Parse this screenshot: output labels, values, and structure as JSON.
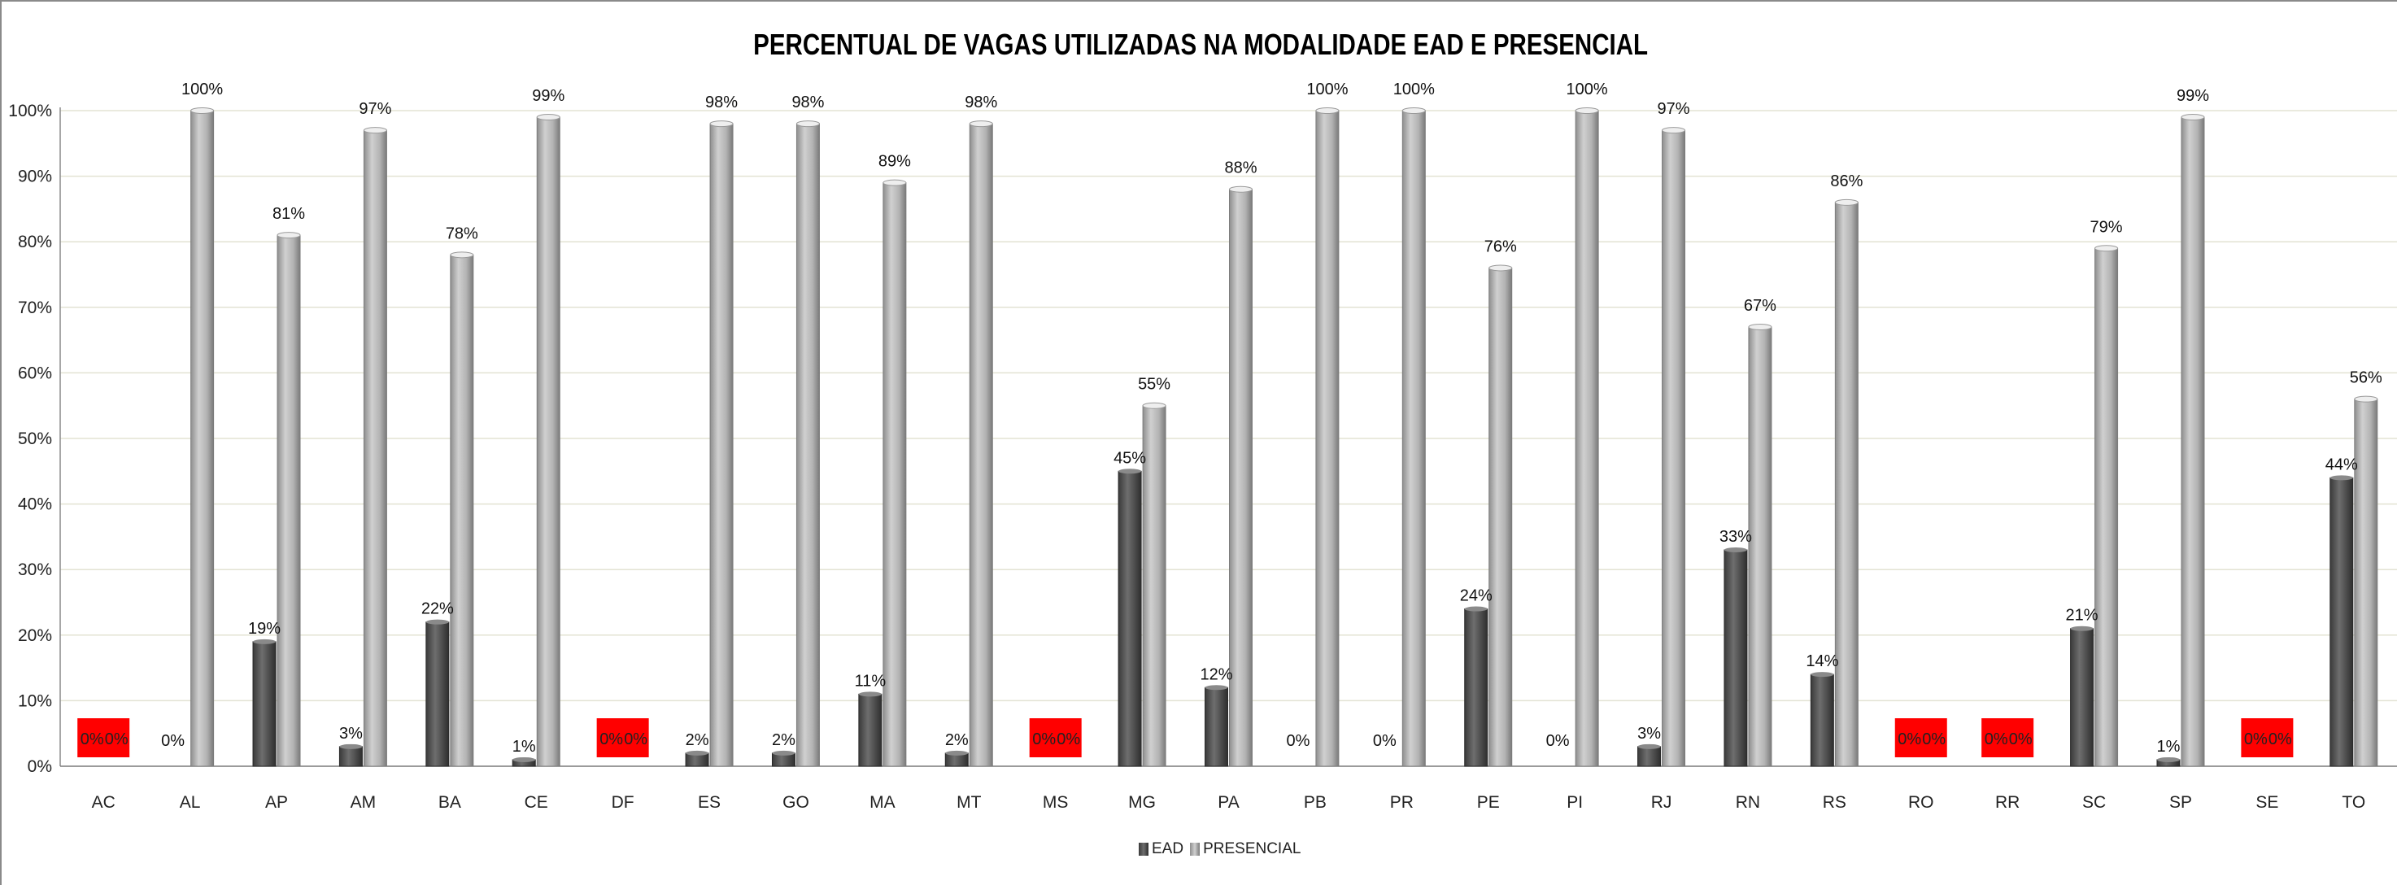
{
  "chart_data": {
    "type": "bar",
    "title": "PERCENTUAL DE VAGAS UTILIZADAS NA MODALIDADE EAD E PRESENCIAL",
    "xlabel": "",
    "ylabel": "",
    "ylim": [
      0,
      1
    ],
    "y_ticks": [
      "0%",
      "10%",
      "20%",
      "30%",
      "40%",
      "50%",
      "60%",
      "70%",
      "80%",
      "90%",
      "100%"
    ],
    "grid": true,
    "legend_position": "bottom",
    "categories": [
      "AC",
      "AL",
      "AP",
      "AM",
      "BA",
      "CE",
      "DF",
      "ES",
      "GO",
      "MA",
      "MT",
      "MS",
      "MG",
      "PA",
      "PB",
      "PR",
      "PE",
      "PI",
      "RJ",
      "RN",
      "RS",
      "RO",
      "RR",
      "SC",
      "SP",
      "SE",
      "TO"
    ],
    "series": [
      {
        "name": "EAD",
        "color": "#555555",
        "values": [
          0,
          0,
          0.19,
          0.03,
          0.22,
          0.01,
          0,
          0.02,
          0.02,
          0.11,
          0.02,
          0,
          0.45,
          0.12,
          0,
          0,
          0.24,
          0,
          0.03,
          0.33,
          0.14,
          0,
          0,
          0.21,
          0.01,
          0,
          0.44
        ],
        "labels": [
          "0%",
          "0%",
          "19%",
          "3%",
          "22%",
          "1%",
          "0%",
          "2%",
          "2%",
          "11%",
          "2%",
          "0%",
          "45%",
          "12%",
          "0%",
          "0%",
          "24%",
          "0%",
          "3%",
          "33%",
          "14%",
          "0%",
          "0%",
          "21%",
          "1%",
          "0%",
          "44%"
        ]
      },
      {
        "name": "PRESENCIAL",
        "color": "#b8b8b8",
        "values": [
          0,
          1.0,
          0.81,
          0.97,
          0.78,
          0.99,
          0,
          0.98,
          0.98,
          0.89,
          0.98,
          0,
          0.55,
          0.88,
          1.0,
          1.0,
          0.76,
          1.0,
          0.97,
          0.67,
          0.86,
          0,
          0,
          0.79,
          0.99,
          0,
          0.56
        ],
        "labels": [
          "0%",
          "100%",
          "81%",
          "97%",
          "78%",
          "99%",
          "0%",
          "98%",
          "98%",
          "89%",
          "98%",
          "0%",
          "55%",
          "88%",
          "100%",
          "100%",
          "76%",
          "100%",
          "97%",
          "67%",
          "86%",
          "0%",
          "0%",
          "79%",
          "99%",
          "0%",
          "56%"
        ]
      }
    ],
    "highlighted_zero_categories": [
      "AC",
      "DF",
      "MS",
      "RO",
      "RR",
      "SE"
    ],
    "highlight_color": "#ff0000"
  }
}
